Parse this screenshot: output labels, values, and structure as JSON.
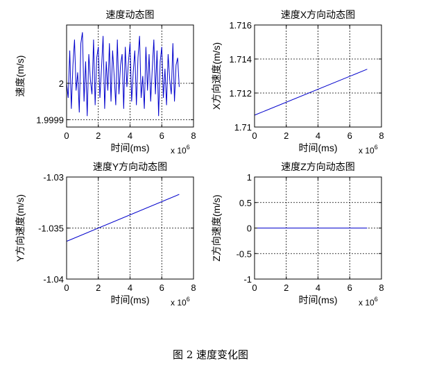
{
  "caption": "图 2  速度变化图",
  "chart_data": [
    {
      "type": "line",
      "title": "速度动态图",
      "xlabel": "时间(ms)",
      "ylabel": "速度(m/s)",
      "x_multiplier": "x 10",
      "x_multiplier_exp": "6",
      "xlim": [
        0,
        8
      ],
      "ylim": [
        1.99988,
        2.00016
      ],
      "x_ticks": [
        0,
        2,
        4,
        6,
        8
      ],
      "y_ticks": [
        1.9999,
        2
      ],
      "y_tick_labels": [
        "1.9999",
        "2"
      ],
      "grid": true,
      "color": "#0000cc",
      "series": [
        {
          "x": [
            0.0,
            0.1,
            0.2,
            0.3,
            0.4,
            0.5,
            0.6,
            0.7,
            0.8,
            0.9,
            1.0,
            1.1,
            1.2,
            1.3,
            1.4,
            1.5,
            1.6,
            1.7,
            1.8,
            1.9,
            2.0,
            2.1,
            2.2,
            2.3,
            2.4,
            2.5,
            2.6,
            2.7,
            2.8,
            2.9,
            3.0,
            3.1,
            3.2,
            3.3,
            3.4,
            3.5,
            3.6,
            3.7,
            3.8,
            3.9,
            4.0,
            4.1,
            4.2,
            4.3,
            4.4,
            4.5,
            4.6,
            4.7,
            4.8,
            4.9,
            5.0,
            5.1,
            5.2,
            5.3,
            5.4,
            5.5,
            5.6,
            5.7,
            5.8,
            5.9,
            6.0,
            6.1,
            6.2,
            6.3,
            6.4,
            6.5,
            6.6,
            6.7,
            6.8,
            6.9,
            7.0,
            7.1
          ],
          "y": [
            2.0,
            1.99996,
            2.00009,
            1.99993,
            2.00005,
            2.00012,
            1.99998,
            2.00003,
            1.99992,
            2.00011,
            2.00014,
            1.99995,
            2.00006,
            1.99991,
            2.00008,
            2.00001,
            1.99997,
            2.00012,
            1.99994,
            2.00007,
            2.0001,
            1.99996,
            2.00004,
            2.00013,
            1.99993,
            2.00006,
            1.99998,
            2.00011,
            1.99995,
            2.00009,
            2.00002,
            1.99994,
            2.00012,
            1.99997,
            2.00005,
            2.00008,
            1.99993,
            2.0001,
            1.99999,
            2.00006,
            2.00011,
            1.99995,
            2.00003,
            2.00009,
            1.99994,
            2.00007,
            2.00013,
            1.99996,
            2.00002,
            1.99993,
            2.0001,
            1.99998,
            2.00008,
            1.99995,
            2.00004,
            2.00012,
            1.99997,
            2.00009,
            1.99991,
            2.00006,
            2.0001,
            1.99996,
            2.00004,
            1.99994,
            2.00008,
            2.00001,
            1.99997,
            2.00011,
            1.99995,
            2.00005,
            2.00007,
            1.99999
          ]
        }
      ]
    },
    {
      "type": "line",
      "title": "速度X方向动态图",
      "xlabel": "时间(ms)",
      "ylabel": "X方向速度(m/s)",
      "x_multiplier": "x 10",
      "x_multiplier_exp": "6",
      "xlim": [
        0,
        8
      ],
      "ylim": [
        1.71,
        1.716
      ],
      "x_ticks": [
        0,
        2,
        4,
        6,
        8
      ],
      "y_ticks": [
        1.71,
        1.712,
        1.714,
        1.716
      ],
      "y_tick_labels": [
        "1.71",
        "1.712",
        "1.714",
        "1.716"
      ],
      "grid": true,
      "color": "#0000cc",
      "series": [
        {
          "x": [
            0,
            7.1
          ],
          "y": [
            1.7107,
            1.7134
          ]
        }
      ]
    },
    {
      "type": "line",
      "title": "速度Y方向动态图",
      "xlabel": "时间(ms)",
      "ylabel": "Y方向速度(m/s)",
      "x_multiplier": "x 10",
      "x_multiplier_exp": "6",
      "xlim": [
        0,
        8
      ],
      "ylim": [
        -1.04,
        -1.03
      ],
      "x_ticks": [
        0,
        2,
        4,
        6,
        8
      ],
      "y_ticks": [
        -1.04,
        -1.035,
        -1.03
      ],
      "y_tick_labels": [
        "-1.04",
        "-1.035",
        "-1.03"
      ],
      "grid": true,
      "color": "#0000cc",
      "series": [
        {
          "x": [
            0,
            7.1
          ],
          "y": [
            -1.0363,
            -1.0317
          ]
        }
      ]
    },
    {
      "type": "line",
      "title": "速度Z方向动态图",
      "xlabel": "时间(ms)",
      "ylabel": "Z方向速度(m/s)",
      "x_multiplier": "x 10",
      "x_multiplier_exp": "6",
      "xlim": [
        0,
        8
      ],
      "ylim": [
        -1,
        1
      ],
      "x_ticks": [
        0,
        2,
        4,
        6,
        8
      ],
      "y_ticks": [
        -1,
        -0.5,
        0,
        0.5,
        1
      ],
      "y_tick_labels": [
        "-1",
        "-0.5",
        "0",
        "0.5",
        "1"
      ],
      "grid": true,
      "color": "#0000cc",
      "series": [
        {
          "x": [
            0,
            7.1
          ],
          "y": [
            0,
            0
          ]
        }
      ]
    }
  ]
}
